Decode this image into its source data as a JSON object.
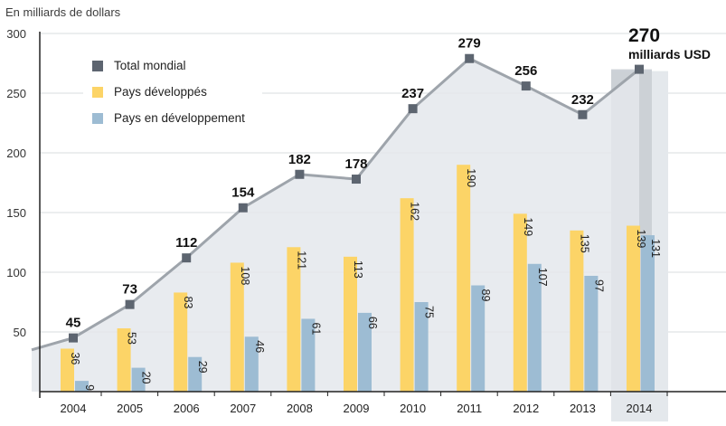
{
  "unit_label": "En milliards de dollars",
  "colors": {
    "total": "#5d6570",
    "developed": "#fcd467",
    "developing": "#9dbcd3",
    "area": "#e4e8ec",
    "line": "#9ea4ab",
    "highlight": "#c9ced4"
  },
  "legend": {
    "total": "Total mondial",
    "developed": "Pays développés",
    "developing": "Pays en développement"
  },
  "chart_data": {
    "type": "bar",
    "categories": [
      "2004",
      "2005",
      "2006",
      "2007",
      "2008",
      "2009",
      "2010",
      "2011",
      "2012",
      "2013",
      "2014"
    ],
    "series": [
      {
        "name": "Pays développés",
        "values": [
          36,
          53,
          83,
          108,
          121,
          113,
          162,
          190,
          149,
          135,
          139
        ]
      },
      {
        "name": "Pays en développement",
        "values": [
          9,
          20,
          29,
          46,
          61,
          66,
          75,
          89,
          107,
          97,
          131
        ]
      },
      {
        "name": "Total mondial",
        "type": "line",
        "values": [
          45,
          73,
          112,
          154,
          182,
          178,
          237,
          279,
          256,
          232,
          270
        ]
      }
    ],
    "ylim": [
      0,
      300
    ],
    "yticks": [
      50,
      100,
      150,
      200,
      250,
      300
    ],
    "highlight_category": "2014",
    "highlight_annotation": {
      "value": "270",
      "unit": "milliards USD"
    },
    "grid": true,
    "legend_position": "top-left"
  }
}
